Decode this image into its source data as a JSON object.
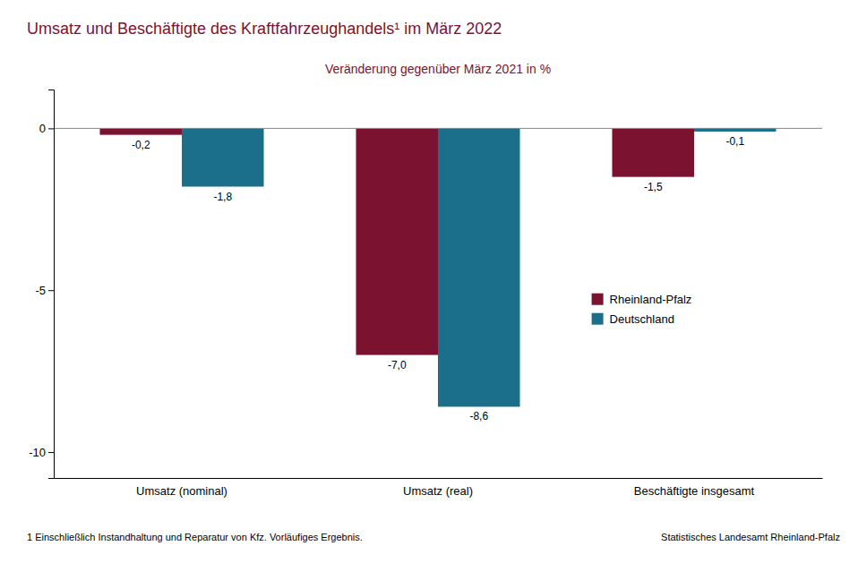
{
  "chart_data": {
    "type": "bar",
    "title": "Umsatz und Beschäftigte des Kraftfahrzeughandels¹ im März 2022",
    "subtitle": "Veränderung gegenüber März 2021 in %",
    "categories": [
      "Umsatz (nominal)",
      "Umsatz (real)",
      "Beschäftigte insgesamt"
    ],
    "series": [
      {
        "name": "Rheinland-Pfalz",
        "color": "#7B1230",
        "values": [
          -0.2,
          -7.0,
          -1.5
        ],
        "value_labels": [
          "-0,2",
          "-7,0",
          "-1,5"
        ]
      },
      {
        "name": "Deutschland",
        "color": "#1B6F8A",
        "values": [
          -1.8,
          -8.6,
          -0.1
        ],
        "value_labels": [
          "-1,8",
          "-8,6",
          "-0,1"
        ]
      }
    ],
    "ylim": [
      -10.8,
      1.2
    ],
    "yticks": [
      0,
      -5,
      -10
    ],
    "grid": false,
    "legend": "right",
    "data_labels": true,
    "annotations": [
      "1 Einschließlich Instandhaltung und Reparatur von Kfz. Vorläufiges  Ergebnis.",
      "Statistisches Landesamt Rheinland-Pfalz"
    ]
  }
}
